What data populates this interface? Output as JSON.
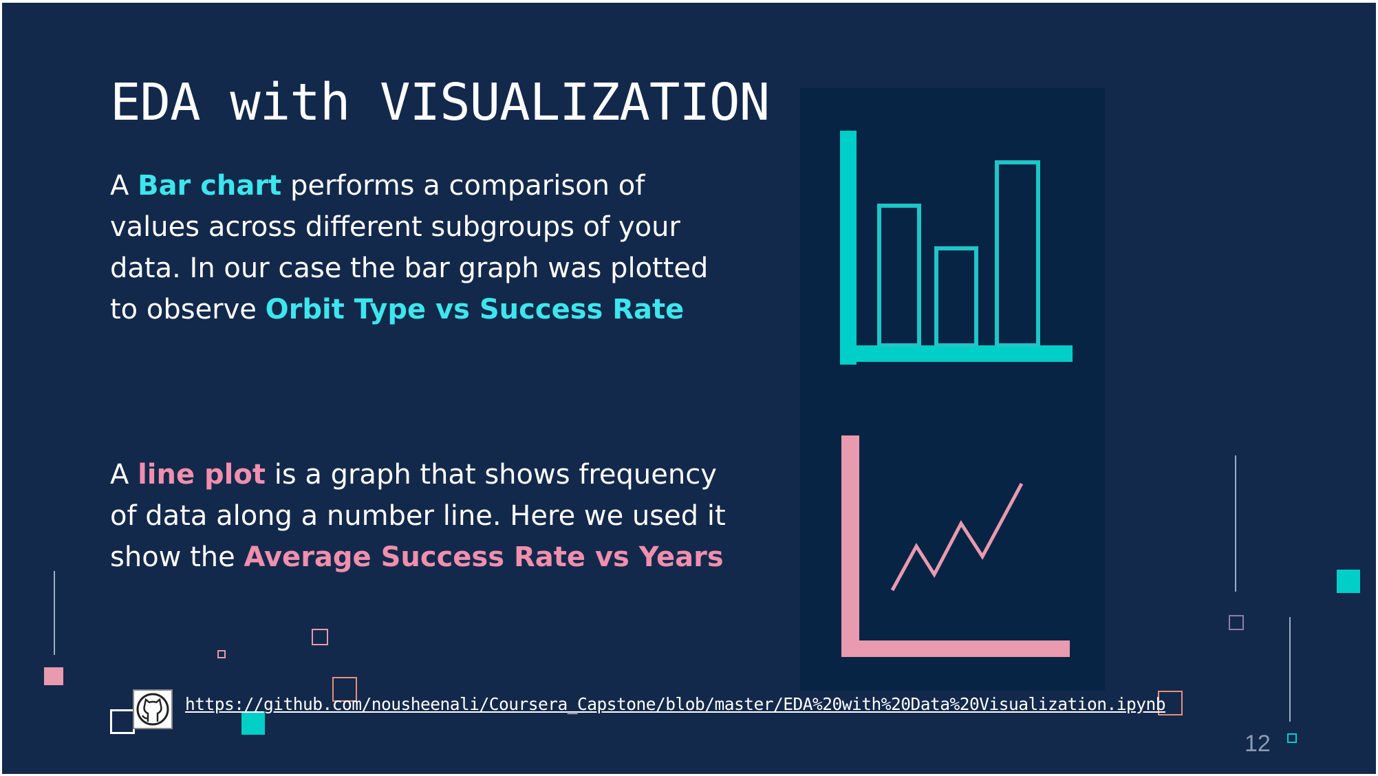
{
  "slide": {
    "title": "EDA with VISUALIZATION",
    "bar_paragraph": {
      "prefix": "A ",
      "highlight1": "Bar chart",
      "middle": " performs a comparison of values across different subgroups of your data. In our case the bar graph was plotted to observe ",
      "highlight2": "Orbit Type vs Success Rate"
    },
    "line_paragraph": {
      "prefix": "A ",
      "highlight1": "line plot",
      "middle": " is a graph that shows frequency of data along a number line. Here we used it show the ",
      "highlight2": "Average Success Rate vs Years"
    },
    "link": "https://github.com/nousheenali/Coursera_Capstone/blob/master/EDA%20with%20Data%20Visualization.ipynb",
    "page_number": "12"
  },
  "icons": {
    "bar_chart": "bar-chart-icon",
    "line_chart": "line-chart-icon",
    "github": "github-octocat-icon"
  },
  "colors": {
    "background": "#13294b",
    "panel": "#082444",
    "cyan": "#00cfc8",
    "pink": "#e89aaf",
    "highlight_cyan": "#3de6ec",
    "highlight_pink": "#f08fae"
  }
}
